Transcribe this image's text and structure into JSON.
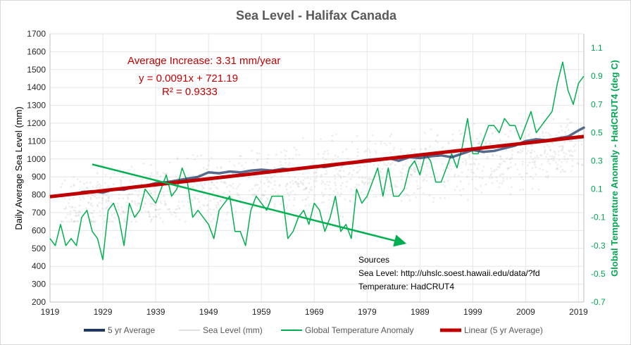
{
  "colors": {
    "sea_level_points": "#bfbfbf",
    "five_year_avg": "#1f3864",
    "temperature": "#00b050",
    "trend": "#c00000",
    "arrow": "#00b050",
    "grid": "#e6e6e6"
  },
  "chart_data": {
    "type": "line",
    "title": "Sea Level - Halifax Canada",
    "ylabel": "Daily Average  Sea Level  (mm)",
    "y2label": "Global Temperature Anomaly - HadCRUT4 (deg C)",
    "xlabel": "",
    "xlim": [
      1919,
      2020
    ],
    "ylim": [
      200,
      1700
    ],
    "y2lim": [
      -0.7,
      1.2
    ],
    "x_ticks": [
      1919,
      1929,
      1939,
      1949,
      1959,
      1969,
      1979,
      1989,
      1999,
      2009,
      2019
    ],
    "y_ticks": [
      200,
      300,
      400,
      500,
      600,
      700,
      800,
      900,
      1000,
      1100,
      1200,
      1300,
      1400,
      1500,
      1600,
      1700
    ],
    "y2_ticks": [
      -0.7,
      -0.5,
      -0.3,
      -0.1,
      0.1,
      0.3,
      0.5,
      0.7,
      0.9,
      1.1
    ],
    "grid": true,
    "legend_position": "bottom",
    "series": [
      {
        "name": "5 yr Average",
        "axis": "left",
        "x": [
          1925,
          1927,
          1929,
          1931,
          1933,
          1935,
          1937,
          1939,
          1941,
          1943,
          1945,
          1947,
          1949,
          1951,
          1953,
          1955,
          1957,
          1959,
          1961,
          1963,
          1965,
          1967,
          1969,
          1971,
          1973,
          1975,
          1977,
          1979,
          1981,
          1983,
          1985,
          1987,
          1989,
          1991,
          1993,
          1995,
          1997,
          1999,
          2001,
          2003,
          2005,
          2007,
          2009,
          2011,
          2013,
          2015,
          2017,
          2019,
          2020
        ],
        "y": [
          815,
          820,
          812,
          830,
          828,
          845,
          850,
          865,
          870,
          880,
          890,
          900,
          925,
          920,
          930,
          925,
          935,
          940,
          935,
          945,
          940,
          950,
          960,
          955,
          965,
          975,
          985,
          995,
          1000,
          1005,
          990,
          1010,
          1005,
          1015,
          1020,
          1010,
          1030,
          1050,
          1040,
          1045,
          1060,
          1075,
          1100,
          1110,
          1105,
          1115,
          1125,
          1160,
          1175
        ]
      },
      {
        "name": "Sea Level (mm)",
        "axis": "left",
        "note_range": [
          750,
          1250
        ]
      },
      {
        "name": "Global Temperature Anomaly",
        "axis": "right",
        "x": [
          1919,
          1920,
          1921,
          1922,
          1923,
          1924,
          1925,
          1926,
          1927,
          1928,
          1929,
          1930,
          1931,
          1932,
          1933,
          1934,
          1935,
          1936,
          1937,
          1938,
          1939,
          1940,
          1941,
          1942,
          1943,
          1944,
          1945,
          1946,
          1947,
          1948,
          1949,
          1950,
          1951,
          1952,
          1953,
          1954,
          1955,
          1956,
          1957,
          1958,
          1959,
          1960,
          1961,
          1962,
          1963,
          1964,
          1965,
          1966,
          1967,
          1968,
          1969,
          1970,
          1971,
          1972,
          1973,
          1974,
          1975,
          1976,
          1977,
          1978,
          1979,
          1980,
          1981,
          1982,
          1983,
          1984,
          1985,
          1986,
          1987,
          1988,
          1989,
          1990,
          1991,
          1992,
          1993,
          1994,
          1995,
          1996,
          1997,
          1998,
          1999,
          2000,
          2001,
          2002,
          2003,
          2004,
          2005,
          2006,
          2007,
          2008,
          2009,
          2010,
          2011,
          2012,
          2013,
          2014,
          2015,
          2016,
          2017,
          2018,
          2019,
          2020
        ],
        "y": [
          -0.25,
          -0.3,
          -0.15,
          -0.3,
          -0.25,
          -0.3,
          -0.1,
          -0.05,
          -0.2,
          -0.25,
          -0.4,
          -0.05,
          0.0,
          -0.1,
          -0.3,
          0.0,
          -0.1,
          -0.05,
          0.1,
          0.05,
          0.0,
          0.1,
          0.2,
          0.05,
          0.1,
          0.25,
          0.15,
          -0.1,
          -0.05,
          -0.1,
          -0.15,
          -0.25,
          -0.05,
          0.0,
          0.05,
          -0.2,
          -0.2,
          -0.3,
          -0.05,
          0.05,
          0.0,
          -0.05,
          0.05,
          0.05,
          0.05,
          -0.25,
          -0.2,
          -0.1,
          -0.05,
          -0.15,
          0.0,
          -0.05,
          -0.2,
          -0.1,
          0.05,
          -0.2,
          -0.15,
          -0.25,
          0.1,
          0.0,
          0.05,
          0.15,
          0.25,
          0.05,
          0.25,
          0.05,
          0.05,
          0.1,
          0.25,
          0.3,
          0.2,
          0.35,
          0.3,
          0.15,
          0.15,
          0.25,
          0.35,
          0.25,
          0.4,
          0.6,
          0.35,
          0.35,
          0.45,
          0.55,
          0.55,
          0.5,
          0.6,
          0.55,
          0.55,
          0.45,
          0.55,
          0.65,
          0.5,
          0.55,
          0.6,
          0.65,
          0.85,
          1.0,
          0.8,
          0.7,
          0.85,
          0.9
        ]
      },
      {
        "name": "Linear (5 yr Average)",
        "axis": "left",
        "x": [
          1919,
          2020
        ],
        "y": [
          789.5,
          1125.4
        ]
      }
    ],
    "annotations": {
      "average_increase": "Average Increase: 3.31 mm/year",
      "equation": "y = 0.0091x + 721.19",
      "r_squared": "R² = 0.9333",
      "sources_title": "Sources",
      "sources_sea_level": "Sea Level: http://uhslc.soest.hawaii.edu/data/?fd",
      "sources_temperature": "Temperature: HadCRUT4"
    },
    "arrow": {
      "from": {
        "x": 1927,
        "y": 970
      },
      "to": {
        "x": 1986,
        "y": 530
      }
    }
  }
}
